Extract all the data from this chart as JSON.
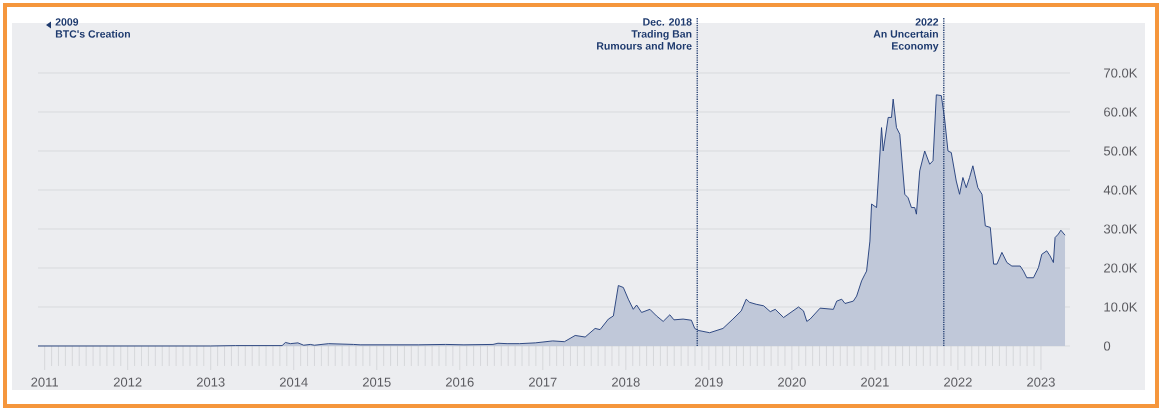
{
  "chart_data": {
    "type": "area",
    "x": [
      2010.92,
      2013.0,
      2013.3,
      2013.86,
      2013.9,
      2013.96,
      2014.05,
      2014.12,
      2014.2,
      2014.25,
      2014.42,
      2014.72,
      2014.8,
      2015.5,
      2015.83,
      2016.05,
      2016.4,
      2016.46,
      2016.57,
      2016.72,
      2016.91,
      2017.12,
      2017.26,
      2017.39,
      2017.51,
      2017.63,
      2017.69,
      2017.79,
      2017.85,
      2017.91,
      2017.97,
      2018.03,
      2018.09,
      2018.13,
      2018.19,
      2018.29,
      2018.37,
      2018.45,
      2018.53,
      2018.58,
      2018.69,
      2018.79,
      2018.83,
      2018.87,
      2019.01,
      2019.17,
      2019.29,
      2019.39,
      2019.45,
      2019.49,
      2019.57,
      2019.66,
      2019.74,
      2019.8,
      2019.9,
      2020.08,
      2020.14,
      2020.18,
      2020.22,
      2020.34,
      2020.5,
      2020.54,
      2020.6,
      2020.64,
      2020.74,
      2020.78,
      2020.84,
      2020.88,
      2020.9,
      2020.94,
      2020.96,
      2021.02,
      2021.08,
      2021.1,
      2021.16,
      2021.2,
      2021.22,
      2021.26,
      2021.3,
      2021.36,
      2021.4,
      2021.44,
      2021.48,
      2021.5,
      2021.54,
      2021.6,
      2021.66,
      2021.7,
      2021.74,
      2021.8,
      2021.84,
      2021.88,
      2021.92,
      2021.98,
      2022.02,
      2022.06,
      2022.1,
      2022.14,
      2022.18,
      2022.24,
      2022.29,
      2022.33,
      2022.39,
      2022.43,
      2022.47,
      2022.53,
      2022.59,
      2022.65,
      2022.75,
      2022.79,
      2022.83,
      2022.91,
      2022.97,
      2023.01,
      2023.07,
      2023.11,
      2023.15,
      2023.17,
      2023.21,
      2023.24,
      2023.29
    ],
    "series": [
      {
        "color": "#1e3a78",
        "values": [
          0,
          0,
          100,
          100,
          900,
          600,
          800,
          200,
          400,
          200,
          600,
          400,
          300,
          300,
          400,
          300,
          400,
          700,
          600,
          600,
          800,
          1300,
          1100,
          2700,
          2300,
          4500,
          4200,
          6900,
          7700,
          15500,
          15000,
          12000,
          9400,
          10500,
          8600,
          9400,
          7700,
          6300,
          8000,
          6700,
          6900,
          6600,
          4500,
          4000,
          3400,
          4500,
          6900,
          9000,
          12000,
          11200,
          10700,
          10300,
          8800,
          9400,
          7300,
          10000,
          9000,
          6300,
          6900,
          9700,
          9400,
          11500,
          12000,
          10900,
          11500,
          12800,
          16700,
          18400,
          19200,
          26900,
          36400,
          35500,
          56000,
          50000,
          58600,
          58600,
          63300,
          56000,
          54300,
          38900,
          38000,
          35500,
          35500,
          33800,
          44900,
          50000,
          46600,
          47500,
          64400,
          64200,
          58200,
          50000,
          49600,
          42300,
          38900,
          43200,
          40600,
          43200,
          46200,
          40600,
          38900,
          30800,
          30400,
          21000,
          21000,
          24000,
          21400,
          20500,
          20500,
          19200,
          17500,
          17500,
          20100,
          23500,
          24400,
          23100,
          21400,
          27800,
          28700,
          29700,
          28400
        ]
      }
    ],
    "xlim": [
      2010.92,
      2023.35
    ],
    "ylim": [
      0,
      70000
    ],
    "xticks": [
      2011,
      2012,
      2013,
      2014,
      2015,
      2016,
      2017,
      2018,
      2019,
      2020,
      2021,
      2022,
      2023
    ],
    "yticks": [
      0,
      {
        "value": 10000,
        "label": "10.0K"
      },
      {
        "value": 20000,
        "label": "20.0K"
      },
      {
        "value": 30000,
        "label": "30.0K"
      },
      {
        "value": 40000,
        "label": "40.0K"
      },
      {
        "value": 50000,
        "label": "50.0K"
      },
      {
        "value": 60000,
        "label": "60.0K"
      },
      {
        "value": 70000,
        "label": "70.0K"
      }
    ],
    "grid": "y",
    "ref_lines": [
      {
        "axis": "x",
        "value": 2018.86,
        "label": "Dec. 2018",
        "color": "#1e3a6e",
        "line_style": "dotted"
      },
      {
        "axis": "x",
        "value": 2021.83,
        "label": "2022",
        "color": "#1e3a6e",
        "line_style": "dotted"
      }
    ],
    "annotations": [
      "2009",
      "BTC's Creation",
      "Trading Ban",
      "Rumours and More",
      "An Uncertain",
      "Economy"
    ]
  }
}
